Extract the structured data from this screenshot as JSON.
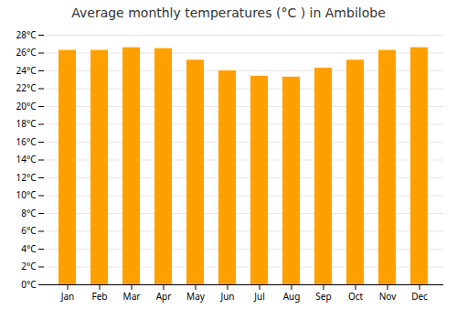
{
  "chart_data": {
    "type": "bar",
    "title": "Average monthly temperatures (°C ) in Ambilobe",
    "categories": [
      "Jan",
      "Feb",
      "Mar",
      "Apr",
      "May",
      "Jun",
      "Jul",
      "Aug",
      "Sep",
      "Oct",
      "Nov",
      "Dec"
    ],
    "values": [
      26.3,
      26.3,
      26.6,
      26.5,
      25.2,
      24.0,
      23.4,
      23.3,
      24.3,
      25.2,
      26.3,
      26.6
    ],
    "color": "#FFA000",
    "ylim": [
      0,
      28
    ],
    "yticks": [
      {
        "value": 0,
        "label": "0°C"
      },
      {
        "value": 2,
        "label": "2°C"
      },
      {
        "value": 4,
        "label": "4°C"
      },
      {
        "value": 6,
        "label": "6°C"
      },
      {
        "value": 8,
        "label": "8°C"
      },
      {
        "value": 10,
        "label": "10°C"
      },
      {
        "value": 12,
        "label": "12°C"
      },
      {
        "value": 14,
        "label": "14°C"
      },
      {
        "value": 16,
        "label": "16°C"
      },
      {
        "value": 18,
        "label": "18°C"
      },
      {
        "value": 20,
        "label": "20°C"
      },
      {
        "value": 22,
        "label": "22°C"
      },
      {
        "value": 24,
        "label": "24°C"
      },
      {
        "value": 26,
        "label": "26°C"
      },
      {
        "value": 28,
        "label": "28°C"
      }
    ],
    "grid": true
  }
}
